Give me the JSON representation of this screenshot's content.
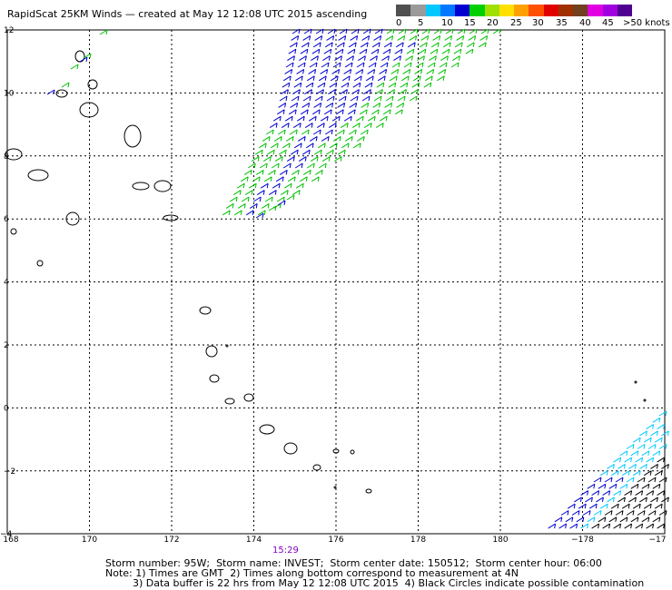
{
  "title": "RapidScat 25KM Winds — created at May 12 12:08 UTC 2015 ascending",
  "colorbar": {
    "colors": [
      "#505050",
      "#9a9a9a",
      "#00c8ff",
      "#0078ff",
      "#0000d0",
      "#00d000",
      "#a0e000",
      "#ffe000",
      "#ffa000",
      "#ff5000",
      "#e00000",
      "#a03000",
      "#704020",
      "#e000e0",
      "#a000e0",
      "#500090"
    ],
    "labels": [
      "0",
      "5",
      "10",
      "15",
      "20",
      "25",
      "30",
      "35",
      "40",
      "45",
      ">50 knots"
    ]
  },
  "map": {
    "lat_labels": [
      "12",
      "10",
      "8",
      "6",
      "4",
      "2",
      "0",
      "−2",
      "−4"
    ],
    "lon_labels": [
      "168",
      "170",
      "172",
      "174",
      "176",
      "178",
      "180",
      "−178",
      "−17"
    ]
  },
  "pass_time": "15:29",
  "info_lines": [
    "Storm number: 95W;  Storm name: INVEST;  Storm center date: 150512;  Storm center hour: 06:00",
    "Note: 1) Times are GMT  2) Times along bottom correspond to measurement at 4N",
    "3) Data buffer is 22 hrs from May 12 12:08 UTC 2015  4) Black Circles indicate possible contamination"
  ],
  "wind_colors": {
    "light": "#00c8ff",
    "blue": "#0000d0",
    "green": "#00c000",
    "black": "#000000"
  }
}
